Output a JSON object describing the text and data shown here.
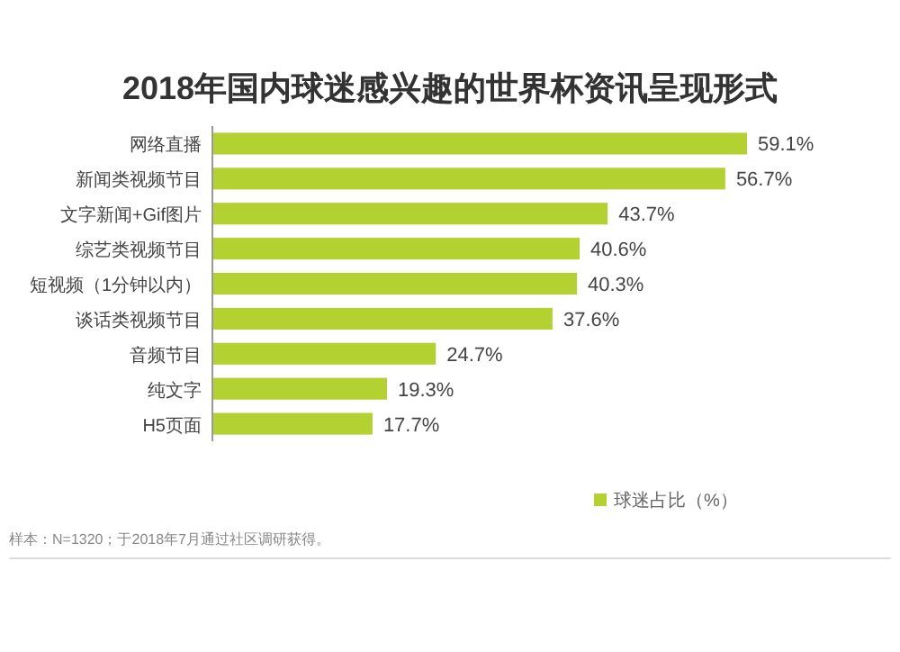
{
  "chart_data": {
    "type": "bar",
    "orientation": "horizontal",
    "title": "2018年国内球迷感兴趣的世界杯资讯呈现形式",
    "categories": [
      "网络直播",
      "新闻类视频节目",
      "文字新闻+Gif图片",
      "综艺类视频节目",
      "短视频（1分钟以内）",
      "谈话类视频节目",
      "音频节目",
      "纯文字",
      "H5页面"
    ],
    "series": [
      {
        "name": "球迷占比（%）",
        "color": "#b3d232",
        "values": [
          59.1,
          56.7,
          43.7,
          40.6,
          40.3,
          37.6,
          24.7,
          19.3,
          17.7
        ],
        "value_labels": [
          "59.1%",
          "56.7%",
          "43.7%",
          "40.6%",
          "40.3%",
          "37.6%",
          "24.7%",
          "19.3%",
          "17.7%"
        ]
      }
    ],
    "legend": "bottom right",
    "annotations": [
      "样本：N=1320；于2018年7月通过社区调研获得。"
    ]
  }
}
